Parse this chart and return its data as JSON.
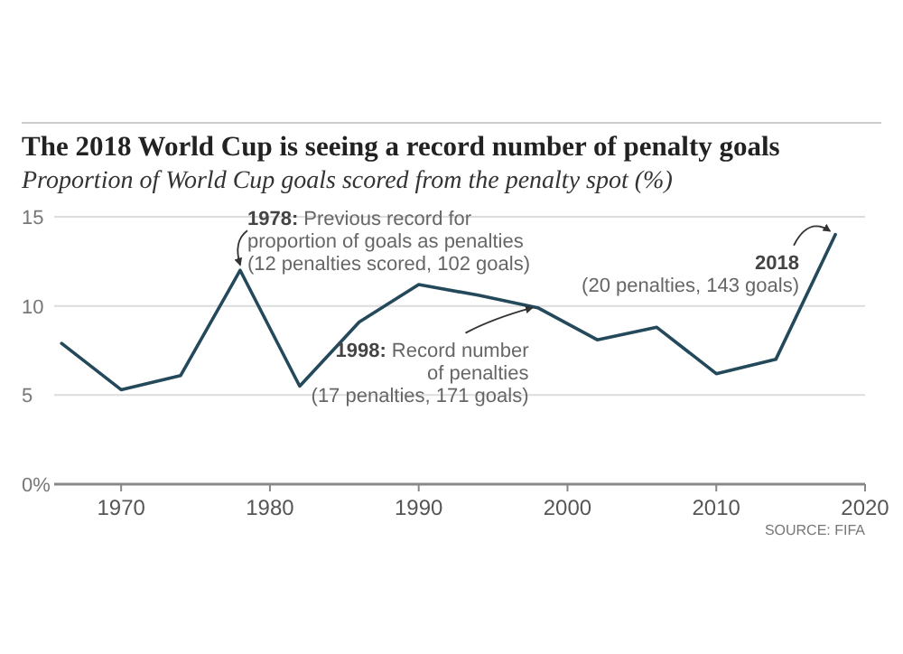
{
  "chart_data": {
    "type": "line",
    "title": "The 2018 World Cup is seeing a record number of penalty goals",
    "subtitle": "Proportion of World Cup goals scored from the penalty spot (%)",
    "x": [
      1966,
      1970,
      1974,
      1978,
      1982,
      1986,
      1990,
      1994,
      1998,
      2002,
      2006,
      2010,
      2014,
      2018
    ],
    "series": [
      {
        "color": "#24495a",
        "values": [
          7.9,
          5.3,
          6.1,
          12.0,
          5.5,
          9.1,
          11.2,
          10.6,
          9.9,
          8.1,
          8.8,
          6.2,
          7.0,
          14.0
        ]
      }
    ],
    "xlim": [
      1965.5,
      2020
    ],
    "xticks": [
      1970,
      1980,
      1990,
      2000,
      2010,
      2020
    ],
    "ylim": [
      0,
      15
    ],
    "yticks": [
      {
        "value": 0,
        "label": "0%"
      },
      5,
      10,
      15
    ],
    "grid": "y",
    "marker": "none",
    "line_style": "solid",
    "annotations": [
      {
        "text": "1978: Previous record for\nproportion of goals as penalties\n(12 penalties scored, 102 goals)",
        "x": 1978,
        "y": 12.0
      },
      {
        "text": "1998: Record number\nof penalties\n(17 penalties, 171 goals)",
        "x": 1998,
        "y": 9.9
      },
      {
        "text": "2018\n(20 penalties, 143 goals)",
        "x": 2018,
        "y": 14.0
      },
      "SOURCE: FIFA"
    ]
  }
}
